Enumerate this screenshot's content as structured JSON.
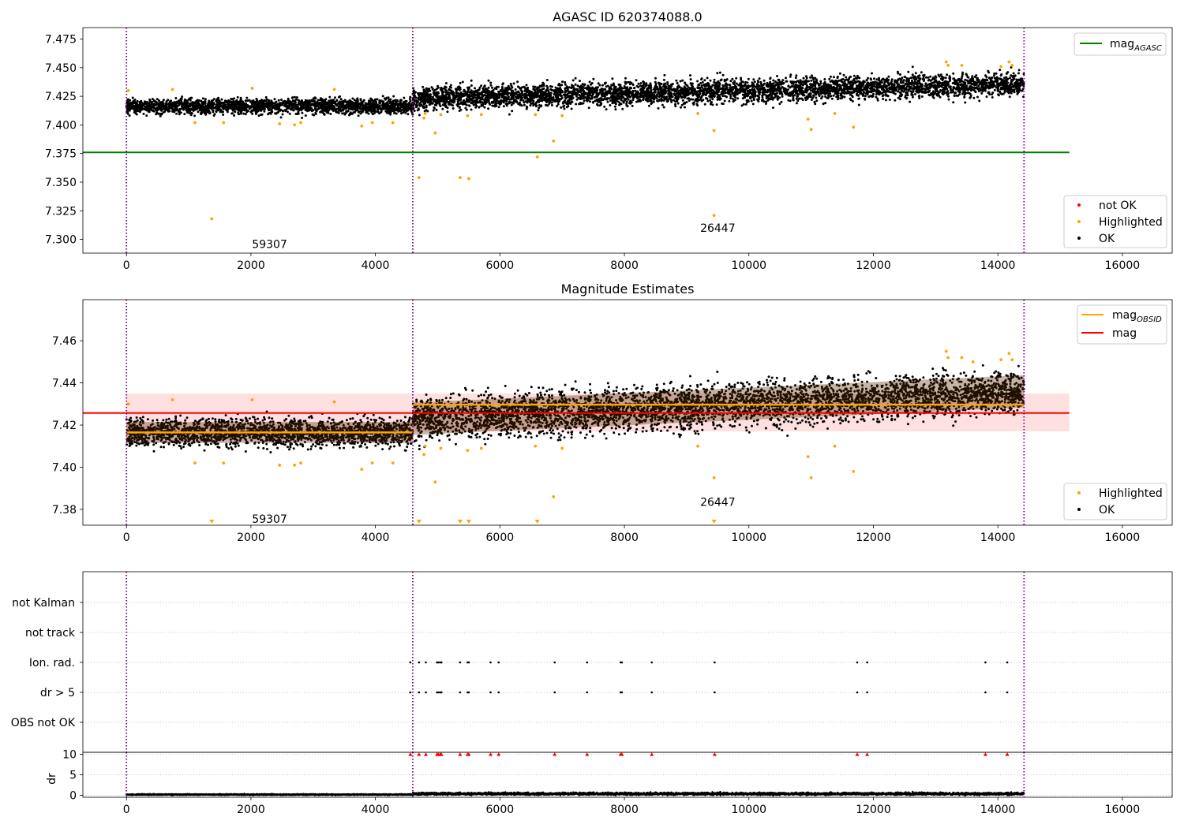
{
  "chart_data": [
    {
      "type": "scatter",
      "title": "AGASC ID 620374088.0",
      "xlim": [
        -700,
        16800
      ],
      "ylim": [
        7.288,
        7.485
      ],
      "xticks": [
        0,
        2000,
        4000,
        6000,
        8000,
        10000,
        12000,
        14000,
        16000
      ],
      "xtick_labels": [
        "0",
        "2000",
        "4000",
        "6000",
        "8000",
        "10000",
        "12000",
        "14000",
        "16000"
      ],
      "yticks": [
        7.3,
        7.325,
        7.35,
        7.375,
        7.4,
        7.425,
        7.45,
        7.475
      ],
      "ytick_labels": [
        "7.300",
        "7.325",
        "7.350",
        "7.375",
        "7.400",
        "7.425",
        "7.450",
        "7.475"
      ],
      "vlines": [
        0,
        4600,
        14420
      ],
      "mag_agasc": 7.376,
      "mag_agasc_xrange": [
        -700,
        15150
      ],
      "obs_segments": [
        {
          "x0": 0,
          "x1": 4600,
          "center": 7.4165,
          "spread": 0.0055
        },
        {
          "x0": 4600,
          "x1": 14420,
          "center_start": 7.423,
          "center_end": 7.436,
          "spread": 0.0085
        }
      ],
      "highlighted_points": [
        {
          "x": 30,
          "y": 7.43
        },
        {
          "x": 740,
          "y": 7.431
        },
        {
          "x": 1100,
          "y": 7.402
        },
        {
          "x": 1370,
          "y": 7.318
        },
        {
          "x": 1560,
          "y": 7.402
        },
        {
          "x": 2020,
          "y": 7.432
        },
        {
          "x": 2460,
          "y": 7.401
        },
        {
          "x": 2700,
          "y": 7.4
        },
        {
          "x": 2800,
          "y": 7.402
        },
        {
          "x": 3340,
          "y": 7.431
        },
        {
          "x": 3780,
          "y": 7.399
        },
        {
          "x": 3950,
          "y": 7.402
        },
        {
          "x": 4280,
          "y": 7.402
        },
        {
          "x": 4700,
          "y": 7.354
        },
        {
          "x": 4800,
          "y": 7.41
        },
        {
          "x": 4780,
          "y": 7.406
        },
        {
          "x": 4960,
          "y": 7.393
        },
        {
          "x": 5050,
          "y": 7.409
        },
        {
          "x": 5360,
          "y": 7.354
        },
        {
          "x": 5500,
          "y": 7.353
        },
        {
          "x": 5480,
          "y": 7.408
        },
        {
          "x": 5700,
          "y": 7.409
        },
        {
          "x": 6570,
          "y": 7.409
        },
        {
          "x": 6600,
          "y": 7.372
        },
        {
          "x": 6860,
          "y": 7.386
        },
        {
          "x": 7000,
          "y": 7.408
        },
        {
          "x": 9180,
          "y": 7.41
        },
        {
          "x": 9440,
          "y": 7.395
        },
        {
          "x": 9440,
          "y": 7.321
        },
        {
          "x": 10950,
          "y": 7.405
        },
        {
          "x": 11000,
          "y": 7.396
        },
        {
          "x": 11380,
          "y": 7.41
        },
        {
          "x": 11680,
          "y": 7.398
        },
        {
          "x": 13170,
          "y": 7.455
        },
        {
          "x": 13200,
          "y": 7.452
        },
        {
          "x": 13420,
          "y": 7.452
        },
        {
          "x": 14180,
          "y": 7.455
        },
        {
          "x": 14230,
          "y": 7.452
        },
        {
          "x": 14050,
          "y": 7.451
        }
      ],
      "annotations": [
        {
          "text": "59307",
          "x": 2300,
          "y": 7.296
        },
        {
          "text": "26447",
          "x": 9500,
          "y": 7.31
        }
      ],
      "legend_top": [
        {
          "label": "mag",
          "sub": "AGASC",
          "color": "#008000",
          "kind": "line"
        }
      ],
      "legend_bottom": [
        {
          "label": "not OK",
          "color": "#ff0000",
          "kind": "dot"
        },
        {
          "label": "Highlighted",
          "color": "#ffa500",
          "kind": "dot"
        },
        {
          "label": "OK",
          "color": "#000000",
          "kind": "dot"
        }
      ]
    },
    {
      "type": "scatter",
      "title": "Magnitude Estimates",
      "xlim": [
        -700,
        16800
      ],
      "ylim": [
        7.3725,
        7.4795
      ],
      "xticks": [
        0,
        2000,
        4000,
        6000,
        8000,
        10000,
        12000,
        14000,
        16000
      ],
      "xtick_labels": [
        "0",
        "2000",
        "4000",
        "6000",
        "8000",
        "10000",
        "12000",
        "14000",
        "16000"
      ],
      "yticks": [
        7.38,
        7.4,
        7.42,
        7.44,
        7.46
      ],
      "ytick_labels": [
        "7.38",
        "7.40",
        "7.42",
        "7.44",
        "7.46"
      ],
      "vlines": [
        0,
        4600,
        14420
      ],
      "mag": 7.4257,
      "mag_band": [
        7.417,
        7.435
      ],
      "mag_xrange": [
        -700,
        15150
      ],
      "mag_obsid": [
        {
          "x0": 0,
          "x1": 4600,
          "y": 7.4165
        },
        {
          "x0": 4600,
          "x1": 14420,
          "y": 7.4297
        }
      ],
      "obs_segments": [
        {
          "x0": 0,
          "x1": 4600,
          "center": 7.4165,
          "spread": 0.0055
        },
        {
          "x0": 4600,
          "x1": 14420,
          "center_start": 7.423,
          "center_end": 7.436,
          "spread": 0.0085
        }
      ],
      "highlighted_points": [
        {
          "x": 30,
          "y": 7.43
        },
        {
          "x": 740,
          "y": 7.432
        },
        {
          "x": 1100,
          "y": 7.402
        },
        {
          "x": 1560,
          "y": 7.402
        },
        {
          "x": 2020,
          "y": 7.432
        },
        {
          "x": 2460,
          "y": 7.401
        },
        {
          "x": 2700,
          "y": 7.401
        },
        {
          "x": 2800,
          "y": 7.402
        },
        {
          "x": 3340,
          "y": 7.431
        },
        {
          "x": 3780,
          "y": 7.399
        },
        {
          "x": 3950,
          "y": 7.402
        },
        {
          "x": 4280,
          "y": 7.402
        },
        {
          "x": 4800,
          "y": 7.41
        },
        {
          "x": 4780,
          "y": 7.406
        },
        {
          "x": 4960,
          "y": 7.393
        },
        {
          "x": 5050,
          "y": 7.409
        },
        {
          "x": 5480,
          "y": 7.408
        },
        {
          "x": 5700,
          "y": 7.409
        },
        {
          "x": 6570,
          "y": 7.41
        },
        {
          "x": 6860,
          "y": 7.386
        },
        {
          "x": 7000,
          "y": 7.409
        },
        {
          "x": 9180,
          "y": 7.41
        },
        {
          "x": 9440,
          "y": 7.395
        },
        {
          "x": 10950,
          "y": 7.405
        },
        {
          "x": 11000,
          "y": 7.395
        },
        {
          "x": 11380,
          "y": 7.41
        },
        {
          "x": 11680,
          "y": 7.398
        },
        {
          "x": 13170,
          "y": 7.455
        },
        {
          "x": 13200,
          "y": 7.452
        },
        {
          "x": 13420,
          "y": 7.452
        },
        {
          "x": 13600,
          "y": 7.45
        },
        {
          "x": 14180,
          "y": 7.454
        },
        {
          "x": 14230,
          "y": 7.451
        },
        {
          "x": 14050,
          "y": 7.451
        }
      ],
      "offscale_markers_x": [
        1370,
        4700,
        5360,
        5500,
        6600,
        9440
      ],
      "annotations": [
        {
          "text": "59307",
          "x": 2300,
          "y": 7.3755
        },
        {
          "text": "26447",
          "x": 9500,
          "y": 7.3835
        }
      ],
      "legend_top": [
        {
          "label": "mag",
          "sub": "OBSID",
          "color": "#ffa500",
          "kind": "line"
        },
        {
          "label": "mag",
          "sub": "",
          "color": "#ff0000",
          "kind": "line"
        }
      ],
      "legend_bottom": [
        {
          "label": "Highlighted",
          "color": "#ffa500",
          "kind": "dot"
        },
        {
          "label": "OK",
          "color": "#000000",
          "kind": "dot"
        }
      ]
    },
    {
      "type": "scatter",
      "xlim": [
        -700,
        16800
      ],
      "flag_rows": [
        "not Kalman",
        "not track",
        "Ion. rad.",
        "dr > 5",
        "OBS not OK"
      ],
      "flag_x": [
        4560,
        4700,
        4810,
        4990,
        5010,
        5040,
        5060,
        5360,
        5480,
        5500,
        5850,
        5980,
        6880,
        7400,
        7940,
        7960,
        8440,
        9450,
        11740,
        11900,
        13800,
        14150
      ],
      "flag_rows_with_points": [
        "Ion. rad.",
        "dr > 5"
      ],
      "vlines": [
        0,
        4600,
        14420
      ]
    },
    {
      "type": "scatter",
      "ylabel": "dr",
      "xlim": [
        -700,
        16800
      ],
      "ylim": [
        -0.5,
        10.5
      ],
      "yticks": [
        0,
        5,
        10
      ],
      "ytick_labels": [
        "0",
        "5",
        "10"
      ],
      "xticks": [
        0,
        2000,
        4000,
        6000,
        8000,
        10000,
        12000,
        14000,
        16000
      ],
      "xtick_labels": [
        "0",
        "2000",
        "4000",
        "6000",
        "8000",
        "10000",
        "12000",
        "14000",
        "16000"
      ],
      "vlines": [
        0,
        4600,
        14420
      ],
      "dr_segments": [
        {
          "x0": 0,
          "x1": 4600,
          "center": 0.15,
          "spread": 0.12
        },
        {
          "x0": 4600,
          "x1": 14420,
          "center": 0.35,
          "spread": 0.25
        }
      ],
      "capped_marker_x": [
        4560,
        4700,
        4810,
        4990,
        5010,
        5040,
        5060,
        5360,
        5480,
        5500,
        5850,
        5980,
        6880,
        7400,
        7940,
        7960,
        8440,
        9450,
        11740,
        11900,
        13800,
        14150
      ],
      "capped_value": 10
    }
  ]
}
